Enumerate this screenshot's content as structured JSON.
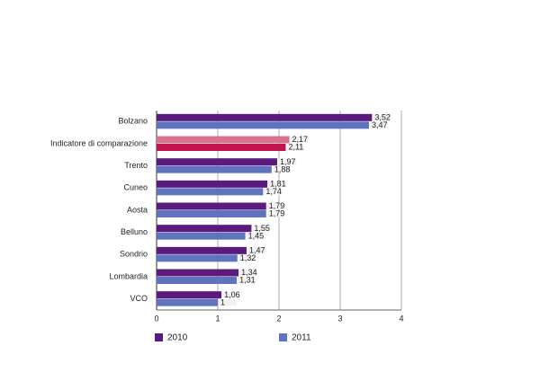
{
  "chart_data": {
    "type": "bar",
    "orientation": "horizontal",
    "categories": [
      "Bolzano",
      "Indicatore di comparazione",
      "Trento",
      "Cuneo",
      "Aosta",
      "Belluno",
      "Sondrio",
      "Lombardia",
      "VCO"
    ],
    "series": [
      {
        "name": "2010",
        "color": "#5b1a7e",
        "colors": [
          "#5b1a7e",
          "#d9738c",
          "#5b1a7e",
          "#5b1a7e",
          "#5b1a7e",
          "#5b1a7e",
          "#5b1a7e",
          "#5b1a7e",
          "#5b1a7e"
        ],
        "values": [
          3.52,
          2.17,
          1.97,
          1.81,
          1.79,
          1.55,
          1.47,
          1.34,
          1.06
        ],
        "value_labels": [
          "3,52",
          "2,17",
          "1,97",
          "1,81",
          "1,79",
          "1,55",
          "1,47",
          "1,34",
          "1,06"
        ]
      },
      {
        "name": "2011",
        "color": "#5f73be",
        "colors": [
          "#5f73be",
          "#c2154f",
          "#5f73be",
          "#5f73be",
          "#5f73be",
          "#5f73be",
          "#5f73be",
          "#5f73be",
          "#5f73be"
        ],
        "values": [
          3.47,
          2.11,
          1.88,
          1.74,
          1.79,
          1.45,
          1.32,
          1.31,
          1
        ],
        "value_labels": [
          "3,47",
          "2,11",
          "1,88",
          "1,74",
          "1,79",
          "1,45",
          "1,32",
          "1,31",
          "1"
        ]
      }
    ],
    "xlim": [
      0,
      4
    ],
    "xticks": [
      0,
      1,
      2,
      3,
      4
    ],
    "grid": true
  }
}
